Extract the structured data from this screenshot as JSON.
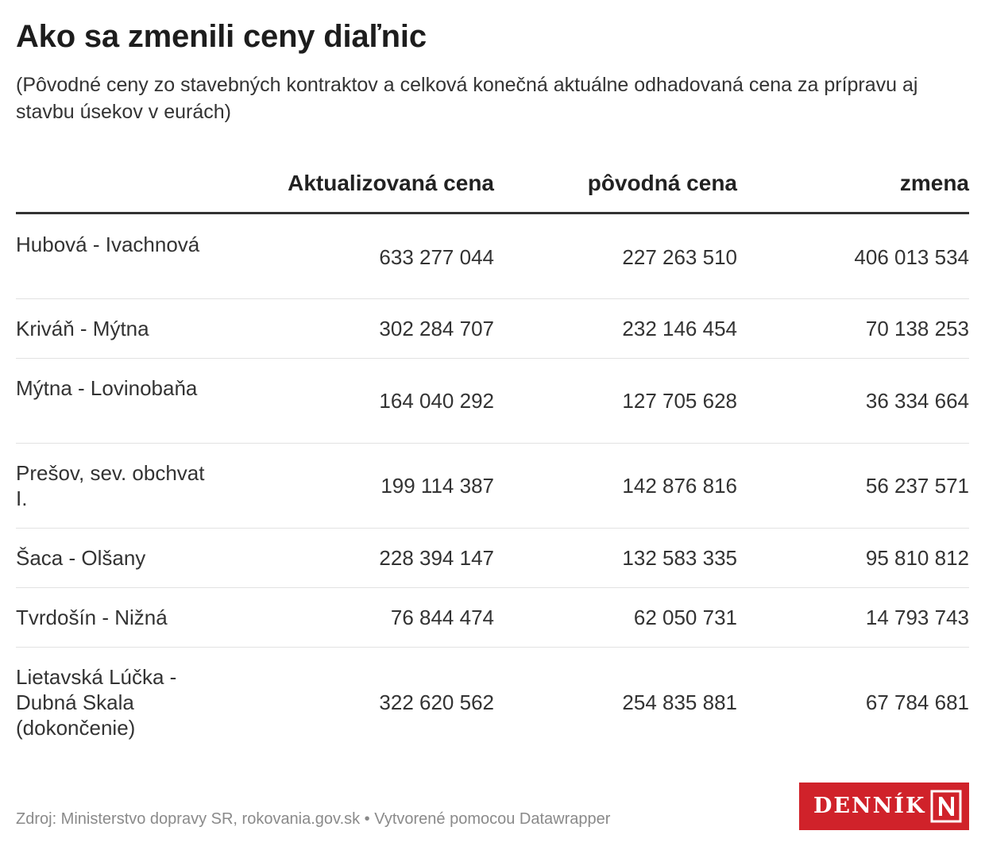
{
  "title": "Ako sa zmenili ceny diaľnic",
  "subtitle": "(Pôvodné ceny zo stavebných kontraktov a celková konečná aktuálne odhadovaná cena za prípravu aj stavbu úsekov v eurách)",
  "columns": [
    "Aktualizovaná cena",
    "pôvodná cena",
    "zmena"
  ],
  "rows": [
    {
      "name": "Hubová - Ivachnová",
      "updated": "633 277 044",
      "original": "227 263 510",
      "change": "406 013 534"
    },
    {
      "name": "Kriváň - Mýtna",
      "updated": "302 284 707",
      "original": "232 146 454",
      "change": "70 138 253"
    },
    {
      "name": "Mýtna - Lovinobaňa",
      "updated": "164 040 292",
      "original": "127 705 628",
      "change": "36 334 664"
    },
    {
      "name": "Prešov, sev. obchvat I.",
      "updated": "199 114 387",
      "original": "142 876 816",
      "change": "56 237 571"
    },
    {
      "name": "Šaca - Olšany",
      "updated": "228 394 147",
      "original": "132 583 335",
      "change": "95 810 812"
    },
    {
      "name": "Tvrdošín - Nižná",
      "updated": "76 844 474",
      "original": "62 050 731",
      "change": "14 793 743"
    },
    {
      "name": "Lietavská Lúčka - Dubná Skala (dokončenie)",
      "updated": "322 620 562",
      "original": "254 835 881",
      "change": "67 784 681"
    }
  ],
  "source": "Zdroj: Ministerstvo dopravy SR, rokovania.gov.sk • Vytvorené pomocou Datawrapper",
  "logo": {
    "text": "DENNÍK",
    "mark": "N"
  },
  "colors": {
    "logo_background": "#d0222a",
    "header_rule": "#333333",
    "row_divider": "#e2e2e2",
    "source_text": "#8a8a8a"
  },
  "chart_data": {
    "type": "table",
    "title": "Ako sa zmenili ceny diaľnic",
    "subtitle": "(Pôvodné ceny zo stavebných kontraktov a celková konečná aktuálne odhadovaná cena za prípravu aj stavbu úsekov v eurách)",
    "columns": [
      "Aktualizovaná cena",
      "pôvodná cena",
      "zmena"
    ],
    "categories": [
      "Hubová - Ivachnová",
      "Kriváň - Mýtna",
      "Mýtna - Lovinobaňa",
      "Prešov, sev. obchvat I.",
      "Šaca - Olšany",
      "Tvrdošín - Nižná",
      "Lietavská Lúčka - Dubná Skala (dokončenie)"
    ],
    "series": [
      {
        "name": "Aktualizovaná cena",
        "values": [
          633277044,
          302284707,
          164040292,
          199114387,
          228394147,
          76844474,
          322620562
        ]
      },
      {
        "name": "pôvodná cena",
        "values": [
          227263510,
          232146454,
          127705628,
          142876816,
          132583335,
          62050731,
          254835881
        ]
      },
      {
        "name": "zmena",
        "values": [
          406013534,
          70138253,
          36334664,
          56237571,
          95810812,
          14793743,
          67784681
        ]
      }
    ]
  }
}
